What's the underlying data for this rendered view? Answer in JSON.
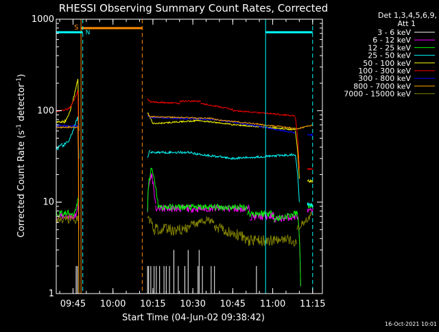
{
  "chart_data": {
    "type": "line",
    "title": "RHESSI Observing Summary Count Rates, Corrected",
    "xlabel": "Start Time (04-Jun-02 09:38:42)",
    "ylabel_main": "Corrected Count Rate (s",
    "ylabel_sup1": "-1",
    "ylabel_mid": " detector",
    "ylabel_sup2": "-1",
    "ylabel_end": ")",
    "y_scale": "log",
    "ylim": [
      1,
      1000
    ],
    "xlim": [
      "09:38:42",
      "11:18:40"
    ],
    "x_ticks": [
      "09:45",
      "10:00",
      "10:15",
      "10:30",
      "10:45",
      "11:00",
      "11:15"
    ],
    "y_ticks": [
      "1",
      "10",
      "100",
      "1000"
    ],
    "legend_placement": "right",
    "legend_header": [
      "Det 1,3,4,5,6,9,",
      "Att 1"
    ],
    "series": [
      {
        "name": "3 - 6 keV",
        "color": "#ffffff"
      },
      {
        "name": "6 - 12 keV",
        "color": "#ff00ff"
      },
      {
        "name": "12 - 25 keV",
        "color": "#00ff00"
      },
      {
        "name": "25 - 50 keV",
        "color": "#00ffff"
      },
      {
        "name": "50 - 100 keV",
        "color": "#ffff00"
      },
      {
        "name": "100 - 300 keV",
        "color": "#ff0000"
      },
      {
        "name": "300 - 800 keV",
        "color": "#0000ff"
      },
      {
        "name": "800 - 7000 keV",
        "color": "#ffa500"
      },
      {
        "name": "7000 - 15000 keV",
        "color": "#808000"
      }
    ],
    "annotations": {
      "saa_label": "S",
      "night_label": "N"
    },
    "footer_timestamp": "16-Oct-2021 10:01"
  }
}
